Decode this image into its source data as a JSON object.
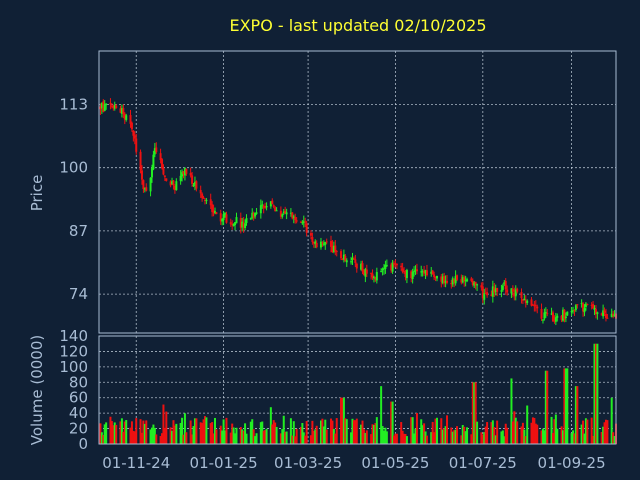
{
  "chart_data": {
    "type": "candlestick",
    "title": "EXPO - last updated 02/10/2025",
    "colors": {
      "background": "#102035",
      "up": "#22ee22",
      "down": "#ee1111",
      "title": "#ffff33",
      "text": "#a8bcd4"
    },
    "price_panel": {
      "ylabel": "Price",
      "yticks": [
        "113",
        "100",
        "87",
        "74"
      ],
      "ylim": [
        66,
        124
      ],
      "grid": true
    },
    "volume_panel": {
      "ylabel": "Volume (0000)",
      "yticks": [
        "140",
        "120",
        "100",
        "80",
        "60",
        "40",
        "20",
        "0"
      ],
      "ylim": [
        0,
        140
      ],
      "grid": true
    },
    "x_ticks": [
      "01-11-24",
      "01-01-25",
      "01-03-25",
      "01-05-25",
      "01-07-25",
      "01-09-25"
    ],
    "x_range": [
      "2024-10-06",
      "2025-10-02"
    ],
    "price_anchors": [
      [
        "2024-10-06",
        112.5
      ],
      [
        "2024-10-20",
        112
      ],
      [
        "2024-10-28",
        110
      ],
      [
        "2024-11-05",
        97
      ],
      [
        "2024-11-10",
        95
      ],
      [
        "2024-11-14",
        105
      ],
      [
        "2024-11-20",
        99
      ],
      [
        "2024-11-28",
        96
      ],
      [
        "2024-12-05",
        99
      ],
      [
        "2024-12-15",
        96
      ],
      [
        "2024-12-25",
        90
      ],
      [
        "2025-01-05",
        89.5
      ],
      [
        "2025-01-15",
        88
      ],
      [
        "2025-01-25",
        92
      ],
      [
        "2025-02-05",
        92
      ],
      [
        "2025-02-15",
        90
      ],
      [
        "2025-02-25",
        89
      ],
      [
        "2025-03-05",
        85
      ],
      [
        "2025-03-20",
        83
      ],
      [
        "2025-04-05",
        80
      ],
      [
        "2025-04-15",
        77
      ],
      [
        "2025-04-25",
        80
      ],
      [
        "2025-05-10",
        78
      ],
      [
        "2025-05-25",
        79
      ],
      [
        "2025-06-05",
        77
      ],
      [
        "2025-06-20",
        77
      ],
      [
        "2025-07-01",
        74
      ],
      [
        "2025-07-15",
        75.5
      ],
      [
        "2025-07-25",
        74
      ],
      [
        "2025-08-10",
        70
      ],
      [
        "2025-08-20",
        69
      ],
      [
        "2025-09-01",
        70.5
      ],
      [
        "2025-09-10",
        71.5
      ],
      [
        "2025-09-20",
        70
      ],
      [
        "2025-10-02",
        69
      ]
    ],
    "volume_typical": [
      10,
      35
    ],
    "volume_spikes": [
      [
        "2025-03-25",
        60
      ],
      [
        "2025-04-20",
        75
      ],
      [
        "2025-04-28",
        55
      ],
      [
        "2025-06-25",
        80
      ],
      [
        "2025-07-20",
        85
      ],
      [
        "2025-08-15",
        95
      ],
      [
        "2025-08-28",
        98
      ],
      [
        "2025-09-05",
        75
      ],
      [
        "2025-09-18",
        130
      ],
      [
        "2025-09-28",
        60
      ]
    ]
  }
}
